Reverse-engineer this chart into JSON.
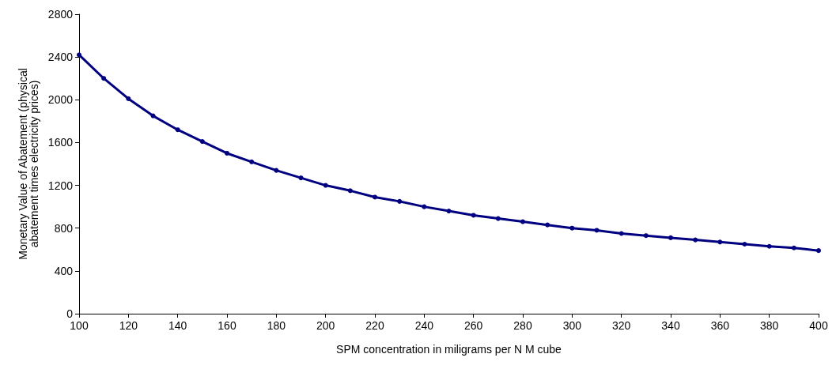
{
  "chart_data": {
    "type": "line",
    "xlabel": "SPM concentration in miligrams per N M cube",
    "ylabel": "Monetary Value of Abatement (physical\nabatement times electricity prices)",
    "x": [
      100,
      110,
      120,
      130,
      140,
      150,
      160,
      170,
      180,
      190,
      200,
      210,
      220,
      230,
      240,
      250,
      260,
      270,
      280,
      290,
      300,
      310,
      320,
      330,
      340,
      350,
      360,
      370,
      380,
      390,
      400
    ],
    "series": [
      {
        "color": "#000080",
        "values": [
          2420,
          2200,
          2010,
          1850,
          1720,
          1610,
          1500,
          1420,
          1340,
          1270,
          1200,
          1150,
          1090,
          1050,
          1000,
          960,
          920,
          890,
          860,
          830,
          800,
          780,
          750,
          730,
          710,
          690,
          670,
          650,
          630,
          615,
          590
        ]
      }
    ],
    "xlim": [
      100,
      400
    ],
    "xticks": [
      100,
      120,
      140,
      160,
      180,
      200,
      220,
      240,
      260,
      280,
      300,
      320,
      340,
      360,
      380,
      400
    ],
    "ylim": [
      0,
      2800
    ],
    "yticks": [
      0,
      400,
      800,
      1200,
      1600,
      2000,
      2400,
      2800
    ],
    "grid": false,
    "marker": "circle",
    "line_style": "solid"
  }
}
